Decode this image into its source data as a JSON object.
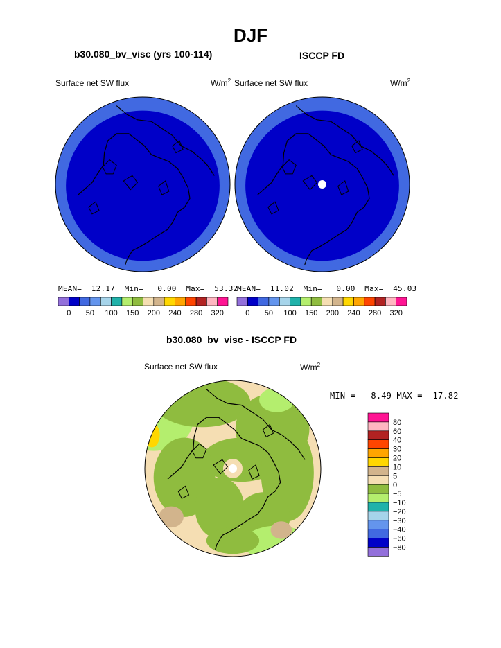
{
  "page": {
    "title": "DJF"
  },
  "chart_data": [
    {
      "type": "heatmap",
      "projection": "north polar stereographic",
      "title": "b30.080_bv_visc (yrs 100-114)",
      "left_label": "Surface net SW flux",
      "unit_base": "W/m",
      "unit_exp": "2",
      "stats": {
        "mean_label": "MEAN=",
        "mean": "12.17",
        "min_label": "Min=",
        "min": "0.00",
        "max_label": "Max=",
        "max": "53.32"
      },
      "colorbar_ticks": [
        "0",
        "50",
        "100",
        "150",
        "200",
        "240",
        "280",
        "320"
      ],
      "colorbar_colors": [
        "#9370db",
        "#0000c8",
        "#4169e1",
        "#6495ed",
        "#a6d4ea",
        "#20b2aa",
        "#b4ee6e",
        "#8fbc3f",
        "#f5deb3",
        "#d2b48c",
        "#ffd700",
        "#ffa500",
        "#ff4500",
        "#b22222",
        "#ffb6c1",
        "#ff1493"
      ],
      "field_colors": {
        "interior": "#0000c8",
        "rim": "#4169e1"
      }
    },
    {
      "type": "heatmap",
      "projection": "north polar stereographic",
      "title": "ISCCP FD",
      "left_label": "Surface net SW flux",
      "unit_base": "W/m",
      "unit_exp": "2",
      "stats": {
        "mean_label": "MEAN=",
        "mean": "11.02",
        "min_label": "Min=",
        "min": "0.00",
        "max_label": "Max=",
        "max": "45.03"
      },
      "colorbar_ticks": [
        "0",
        "50",
        "100",
        "150",
        "200",
        "240",
        "280",
        "320"
      ],
      "colorbar_colors": [
        "#9370db",
        "#0000c8",
        "#4169e1",
        "#6495ed",
        "#a6d4ea",
        "#20b2aa",
        "#b4ee6e",
        "#8fbc3f",
        "#f5deb3",
        "#d2b48c",
        "#ffd700",
        "#ffa500",
        "#ff4500",
        "#b22222",
        "#ffb6c1",
        "#ff1493"
      ],
      "field_colors": {
        "interior": "#0000c8",
        "rim": "#4169e1",
        "missing": "#ffffff"
      }
    },
    {
      "type": "heatmap",
      "projection": "north polar stereographic",
      "title": "b30.080_bv_visc - ISCCP FD",
      "left_label": "Surface net SW flux",
      "unit_base": "W/m",
      "unit_exp": "2",
      "stats": {
        "min_label": "MIN =",
        "min": "-8.49",
        "max_label": "MAX =",
        "max": "17.82"
      },
      "colorbar_ticks": [
        "80",
        "60",
        "40",
        "30",
        "20",
        "10",
        "5",
        "0",
        "−5",
        "−10",
        "−20",
        "−30",
        "−40",
        "−60",
        "−80"
      ],
      "colorbar_colors": [
        "#ff1493",
        "#ffb6c1",
        "#b22222",
        "#ff4500",
        "#ffa500",
        "#ffd700",
        "#d2b48c",
        "#f5deb3",
        "#8fbc3f",
        "#b4ee6e",
        "#20b2aa",
        "#a6d4ea",
        "#6495ed",
        "#4169e1",
        "#0000c8",
        "#9370db"
      ],
      "field_colors": {
        "light": "#b4ee6e",
        "green": "#8fbc3f",
        "wheat": "#f5deb3",
        "tan": "#d2b48c",
        "gold": "#ffd700",
        "missing": "#ffffff"
      }
    }
  ]
}
